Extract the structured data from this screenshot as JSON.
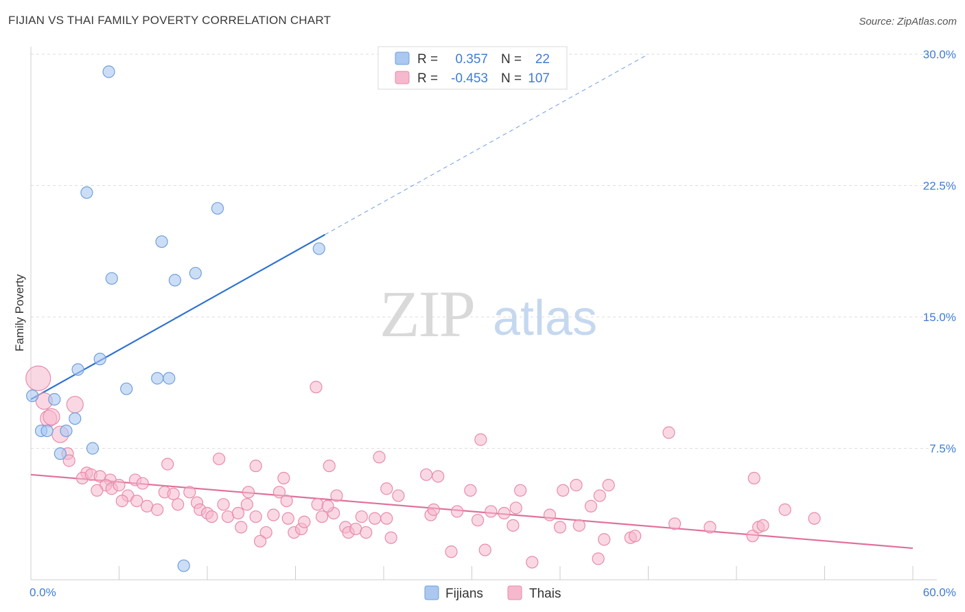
{
  "header": {
    "title": "FIJIAN VS THAI FAMILY POVERTY CORRELATION CHART",
    "source": "Source: ZipAtlas.com"
  },
  "watermark": {
    "part1": "ZIP",
    "part2": "atlas"
  },
  "colors": {
    "fijians_fill": "#aac8f0",
    "fijians_stroke": "#6f9fdc",
    "fijians_line": "#2e72d2",
    "thais_fill": "#f6b8cc",
    "thais_stroke": "#e88aaa",
    "thais_line": "#e0709a",
    "grid": "#dddddd",
    "tick_text": "#3d7cd6"
  },
  "legend": {
    "rows": [
      {
        "r_label": "R =",
        "r_value": "0.357",
        "n_label": "N =",
        "n_value": "22"
      },
      {
        "r_label": "R =",
        "r_value": "-0.453",
        "n_label": "N =",
        "n_value": "107"
      }
    ]
  },
  "bottom_legend": {
    "fijians": "Fijians",
    "thais": "Thais"
  },
  "chart_data": {
    "type": "scatter",
    "title": "FIJIAN VS THAI FAMILY POVERTY CORRELATION CHART",
    "xlabel": "",
    "ylabel": "Family Poverty",
    "xlim": [
      0,
      60
    ],
    "ylim": [
      0,
      30
    ],
    "x_tick_labels": [
      "0.0%",
      "60.0%"
    ],
    "y_ticks": [
      7.5,
      15.0,
      22.5,
      30.0
    ],
    "y_tick_labels": [
      "7.5%",
      "15.0%",
      "22.5%",
      "30.0%"
    ],
    "grid": true,
    "legend_position": "top-center",
    "series": [
      {
        "name": "Fijians",
        "R": 0.357,
        "N": 22,
        "trend": {
          "x": [
            0,
            20
          ],
          "y": [
            10.3,
            19.7
          ],
          "dashed_to": [
            42,
            30
          ]
        },
        "points": [
          [
            5.3,
            29.0
          ],
          [
            3.8,
            22.1
          ],
          [
            12.7,
            21.2
          ],
          [
            8.9,
            19.3
          ],
          [
            19.6,
            18.9
          ],
          [
            11.2,
            17.5
          ],
          [
            5.5,
            17.2
          ],
          [
            9.8,
            17.1
          ],
          [
            4.7,
            12.6
          ],
          [
            3.2,
            12.0
          ],
          [
            8.6,
            11.5
          ],
          [
            9.4,
            11.5
          ],
          [
            6.5,
            10.9
          ],
          [
            0.1,
            10.5
          ],
          [
            1.6,
            10.3
          ],
          [
            3.0,
            9.2
          ],
          [
            0.7,
            8.5
          ],
          [
            1.1,
            8.5
          ],
          [
            2.4,
            8.5
          ],
          [
            4.2,
            7.5
          ],
          [
            2.0,
            7.2
          ],
          [
            10.4,
            0.8
          ]
        ]
      },
      {
        "name": "Thais",
        "R": -0.453,
        "N": 107,
        "trend": {
          "x": [
            0,
            60
          ],
          "y": [
            6.0,
            1.8
          ]
        },
        "points": [
          [
            0.5,
            11.5
          ],
          [
            0.9,
            10.2
          ],
          [
            3.0,
            10.0
          ],
          [
            1.2,
            9.2
          ],
          [
            1.4,
            9.3
          ],
          [
            2.0,
            8.3
          ],
          [
            19.4,
            11.0
          ],
          [
            30.6,
            8.0
          ],
          [
            43.4,
            8.4
          ],
          [
            12.8,
            6.9
          ],
          [
            23.7,
            7.0
          ],
          [
            9.3,
            6.6
          ],
          [
            15.3,
            6.5
          ],
          [
            20.3,
            6.5
          ],
          [
            2.5,
            7.2
          ],
          [
            2.6,
            6.8
          ],
          [
            3.8,
            6.1
          ],
          [
            3.5,
            5.8
          ],
          [
            4.1,
            6.0
          ],
          [
            4.7,
            5.9
          ],
          [
            5.4,
            5.7
          ],
          [
            5.1,
            5.4
          ],
          [
            5.5,
            5.2
          ],
          [
            4.5,
            5.1
          ],
          [
            6.0,
            5.4
          ],
          [
            7.1,
            5.7
          ],
          [
            7.6,
            5.5
          ],
          [
            6.6,
            4.8
          ],
          [
            6.2,
            4.5
          ],
          [
            7.2,
            4.5
          ],
          [
            7.9,
            4.2
          ],
          [
            8.6,
            4.0
          ],
          [
            9.1,
            5.0
          ],
          [
            9.7,
            4.9
          ],
          [
            10.0,
            4.3
          ],
          [
            10.8,
            5.0
          ],
          [
            11.3,
            4.4
          ],
          [
            11.5,
            4.0
          ],
          [
            12.0,
            3.8
          ],
          [
            12.3,
            3.6
          ],
          [
            13.1,
            4.3
          ],
          [
            13.4,
            3.6
          ],
          [
            14.1,
            3.8
          ],
          [
            14.7,
            4.3
          ],
          [
            14.8,
            5.0
          ],
          [
            15.3,
            3.6
          ],
          [
            14.3,
            3.0
          ],
          [
            16.0,
            2.7
          ],
          [
            15.6,
            2.2
          ],
          [
            16.5,
            3.7
          ],
          [
            16.9,
            5.0
          ],
          [
            17.4,
            4.5
          ],
          [
            17.5,
            3.5
          ],
          [
            17.9,
            2.7
          ],
          [
            18.4,
            2.9
          ],
          [
            18.6,
            3.3
          ],
          [
            17.2,
            5.8
          ],
          [
            19.5,
            4.3
          ],
          [
            19.8,
            3.6
          ],
          [
            20.6,
            3.8
          ],
          [
            20.8,
            4.8
          ],
          [
            20.2,
            4.2
          ],
          [
            21.4,
            3.0
          ],
          [
            21.6,
            2.7
          ],
          [
            22.1,
            2.9
          ],
          [
            22.5,
            3.6
          ],
          [
            22.8,
            2.7
          ],
          [
            23.4,
            3.5
          ],
          [
            24.2,
            3.5
          ],
          [
            24.5,
            2.4
          ],
          [
            24.2,
            5.2
          ],
          [
            25.0,
            4.8
          ],
          [
            26.9,
            6.0
          ],
          [
            27.2,
            3.7
          ],
          [
            27.4,
            4.0
          ],
          [
            27.7,
            5.9
          ],
          [
            28.6,
            1.6
          ],
          [
            29.0,
            3.9
          ],
          [
            30.4,
            3.4
          ],
          [
            29.9,
            5.1
          ],
          [
            30.9,
            1.7
          ],
          [
            31.3,
            3.9
          ],
          [
            32.2,
            3.8
          ],
          [
            32.8,
            3.1
          ],
          [
            33.0,
            4.1
          ],
          [
            33.3,
            5.1
          ],
          [
            34.1,
            1.0
          ],
          [
            35.3,
            3.7
          ],
          [
            36.0,
            3.0
          ],
          [
            36.2,
            5.1
          ],
          [
            37.1,
            5.4
          ],
          [
            37.3,
            3.1
          ],
          [
            38.1,
            4.2
          ],
          [
            38.7,
            4.8
          ],
          [
            38.6,
            1.2
          ],
          [
            39.0,
            2.3
          ],
          [
            39.3,
            5.4
          ],
          [
            40.8,
            2.4
          ],
          [
            41.1,
            2.5
          ],
          [
            43.8,
            3.2
          ],
          [
            46.2,
            3.0
          ],
          [
            49.1,
            2.5
          ],
          [
            49.2,
            5.8
          ],
          [
            49.5,
            3.0
          ],
          [
            49.8,
            3.1
          ],
          [
            51.3,
            4.0
          ],
          [
            53.3,
            3.5
          ]
        ]
      }
    ]
  }
}
